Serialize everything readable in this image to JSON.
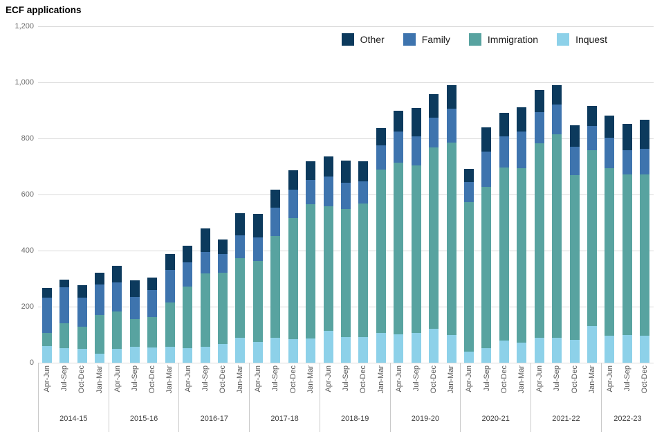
{
  "title": "ECF applications",
  "colors": {
    "other": "#0c3a5d",
    "family": "#3e74ae",
    "immigration": "#58a3a0",
    "inquest": "#8dd1e9",
    "gridline": "#d9d9d9",
    "axis_text": "#6b6b6b",
    "quarter_label_text": "#595959",
    "year_label_text": "#3f3f3f"
  },
  "legend": [
    {
      "key": "other",
      "label": "Other",
      "color": "#0c3a5d"
    },
    {
      "key": "family",
      "label": "Family",
      "color": "#3e74ae"
    },
    {
      "key": "immigration",
      "label": "Immigration",
      "color": "#58a3a0"
    },
    {
      "key": "inquest",
      "label": "Inquest",
      "color": "#8dd1e9"
    }
  ],
  "y_axis": {
    "ticks": [
      "1,200",
      "1,000",
      "800",
      "600",
      "400",
      "200",
      "0"
    ]
  },
  "chart_data": {
    "type": "bar",
    "stacked": true,
    "title": "ECF applications",
    "xlabel": "",
    "ylabel": "",
    "ylim": [
      0,
      1200
    ],
    "ytick_interval": 200,
    "grid": true,
    "legend_position": "top-right",
    "series_order_bottom_to_top": [
      "inquest",
      "immigration",
      "family",
      "other"
    ],
    "groups": [
      {
        "year": "2014-15",
        "quarters": [
          "Apr-Jun",
          "Jul-Sep",
          "Oct-Dec",
          "Jan-Mar"
        ],
        "values": {
          "inquest": [
            60,
            52,
            50,
            33
          ],
          "immigration": [
            47,
            88,
            78,
            138
          ],
          "family": [
            124,
            130,
            105,
            108
          ],
          "other": [
            35,
            27,
            43,
            43
          ]
        }
      },
      {
        "year": "2015-16",
        "quarters": [
          "Apr-Jun",
          "Jul-Sep",
          "Oct-Dec",
          "Jan-Mar"
        ],
        "values": {
          "inquest": [
            50,
            58,
            54,
            58
          ],
          "immigration": [
            133,
            97,
            109,
            157
          ],
          "family": [
            103,
            80,
            97,
            115
          ],
          "other": [
            60,
            60,
            43,
            58
          ]
        }
      },
      {
        "year": "2016-17",
        "quarters": [
          "Apr-Jun",
          "Jul-Sep",
          "Oct-Dec",
          "Jan-Mar"
        ],
        "values": {
          "inquest": [
            52,
            56,
            66,
            89
          ],
          "immigration": [
            220,
            262,
            256,
            284
          ],
          "family": [
            87,
            78,
            66,
            82
          ],
          "other": [
            59,
            84,
            51,
            79
          ]
        }
      },
      {
        "year": "2017-18",
        "quarters": [
          "Apr-Jun",
          "Jul-Sep",
          "Oct-Dec",
          "Jan-Mar"
        ],
        "values": {
          "inquest": [
            75,
            90,
            85,
            87
          ],
          "immigration": [
            288,
            362,
            430,
            478
          ],
          "family": [
            84,
            100,
            103,
            86
          ],
          "other": [
            85,
            66,
            69,
            68
          ]
        }
      },
      {
        "year": "2018-19",
        "quarters": [
          "Apr-Jun",
          "Jul-Sep",
          "Oct-Dec",
          "Jan-Mar"
        ],
        "values": {
          "inquest": [
            113,
            91,
            91,
            106
          ],
          "immigration": [
            444,
            457,
            476,
            582
          ],
          "family": [
            107,
            95,
            81,
            87
          ],
          "other": [
            72,
            78,
            70,
            62
          ]
        }
      },
      {
        "year": "2019-20",
        "quarters": [
          "Apr-Jun",
          "Jul-Sep",
          "Oct-Dec",
          "Jan-Mar"
        ],
        "values": {
          "inquest": [
            102,
            105,
            121,
            98
          ],
          "immigration": [
            611,
            598,
            647,
            687
          ],
          "family": [
            113,
            105,
            106,
            122
          ],
          "other": [
            74,
            100,
            84,
            82
          ]
        }
      },
      {
        "year": "2020-21",
        "quarters": [
          "Apr-Jun",
          "Jul-Sep",
          "Oct-Dec",
          "Jan-Mar"
        ],
        "values": {
          "inquest": [
            39,
            53,
            80,
            72
          ],
          "immigration": [
            534,
            575,
            617,
            622
          ],
          "family": [
            72,
            126,
            111,
            130
          ],
          "other": [
            46,
            85,
            84,
            87
          ]
        }
      },
      {
        "year": "2021-22",
        "quarters": [
          "Apr-Jun",
          "Jul-Sep",
          "Oct-Dec",
          "Jan-Mar"
        ],
        "values": {
          "inquest": [
            88,
            90,
            82,
            131
          ],
          "immigration": [
            695,
            725,
            586,
            626
          ],
          "family": [
            111,
            107,
            103,
            88
          ],
          "other": [
            80,
            69,
            76,
            72
          ]
        }
      },
      {
        "year": "2022-23",
        "quarters": [
          "Apr-Jun",
          "Jul-Sep",
          "Oct-Dec"
        ],
        "values": {
          "inquest": [
            96,
            98,
            97
          ],
          "immigration": [
            597,
            574,
            575
          ],
          "family": [
            109,
            85,
            91
          ],
          "other": [
            79,
            94,
            104
          ]
        }
      }
    ]
  }
}
